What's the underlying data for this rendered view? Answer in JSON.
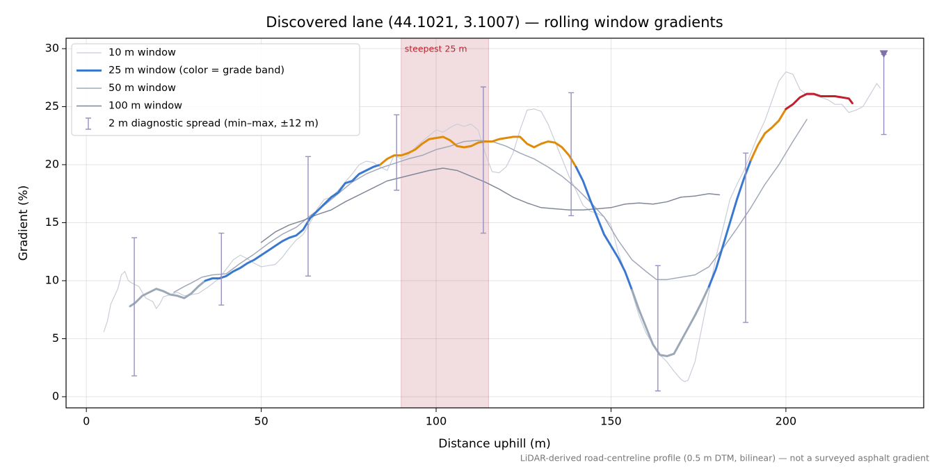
{
  "chart_data": {
    "type": "line",
    "title": "Discovered lane (44.1021, 3.1007) — rolling window gradients",
    "xlabel": "Distance uphill (m)",
    "ylabel": "Gradient (%)",
    "footnote": "LiDAR-derived road-centreline profile (0.5 m DTM, bilinear) — not a surveyed asphalt gradient",
    "xlim": [
      -5.8,
      239.4
    ],
    "ylim": [
      -0.96,
      30.9
    ],
    "xticks": [
      0,
      50,
      100,
      150,
      200
    ],
    "yticks": [
      0,
      5,
      10,
      15,
      20,
      25,
      30
    ],
    "grid": true,
    "legend": "upper left",
    "shade": {
      "x0": 90,
      "x1": 115,
      "label": "steepest 25 m",
      "color": "#d9a0a8",
      "label_color": "#c0202e"
    },
    "series": [
      {
        "name": "10 m window",
        "color": "#c8cdd8",
        "width": 1.2,
        "x": [
          5,
          6,
          7,
          9,
          10,
          11,
          12,
          13,
          15,
          17,
          19,
          20,
          21,
          22,
          24,
          26,
          28,
          30,
          32,
          35,
          38,
          40,
          42,
          44,
          46,
          48,
          50,
          52,
          54,
          56,
          58,
          60,
          62,
          64,
          66,
          68,
          70,
          72,
          74,
          76,
          78,
          80,
          82,
          84,
          86,
          88,
          90,
          92,
          94,
          96,
          98,
          100,
          102,
          104,
          106,
          108,
          110,
          112,
          114,
          116,
          118,
          120,
          122,
          124,
          126,
          128,
          130,
          132,
          134,
          136,
          138,
          140,
          142,
          144,
          146,
          148,
          150,
          152,
          154,
          156,
          158,
          160,
          162,
          164,
          166,
          168,
          170,
          171,
          172,
          174,
          176,
          178,
          180,
          182,
          184,
          186,
          188,
          190,
          192,
          194,
          196,
          198,
          200,
          202,
          204,
          206,
          208,
          210,
          212,
          214,
          216,
          218,
          220,
          222,
          224,
          226,
          227
        ],
        "values": [
          5.6,
          6.5,
          8,
          9.3,
          10.5,
          10.8,
          10,
          9.8,
          9.5,
          8.5,
          8.2,
          7.6,
          8,
          8.6,
          8.8,
          9,
          8.7,
          8.8,
          8.9,
          9.5,
          10.2,
          11,
          11.8,
          12.2,
          11.9,
          11.5,
          11.2,
          11.3,
          11.4,
          12,
          12.8,
          13.5,
          14,
          15,
          16.2,
          17,
          17.2,
          17.8,
          18.5,
          19.2,
          20,
          20.3,
          20.2,
          19.8,
          19.5,
          20.8,
          20.5,
          20.8,
          21.5,
          22,
          22.5,
          23,
          22.8,
          23.2,
          23.5,
          23.3,
          23.5,
          23,
          21,
          19.4,
          19.3,
          19.8,
          21,
          23,
          24.7,
          24.8,
          24.6,
          23.5,
          22,
          20.5,
          19,
          17.8,
          16.5,
          16,
          15.8,
          15.5,
          14.8,
          12.5,
          10.8,
          9,
          7,
          5.5,
          4.5,
          3.6,
          3,
          2.2,
          1.5,
          1.3,
          1.4,
          3,
          6,
          9,
          12,
          14.5,
          17,
          18.3,
          19.5,
          21,
          22.5,
          23.8,
          25.5,
          27.2,
          28,
          27.8,
          26.5,
          26,
          26,
          25.8,
          25.6,
          25.2,
          25.2,
          24.5,
          24.7,
          25,
          26,
          27,
          26.6
        ]
      },
      {
        "name": "25 m window (color = grade band)",
        "color": "#3a78d0",
        "width": 3,
        "bands": [
          {
            "below": 10,
            "color": "#9aa8b8"
          },
          {
            "below": 20,
            "color": "#3a78d0"
          },
          {
            "below": 25,
            "color": "#e08a0a"
          },
          {
            "below": 100,
            "color": "#c0202e"
          }
        ],
        "x": [
          12.5,
          14,
          16,
          18,
          20,
          22,
          24,
          26,
          28,
          30,
          32,
          34,
          36,
          38,
          40,
          42,
          44,
          46,
          48,
          50,
          52,
          54,
          56,
          58,
          60,
          62,
          64,
          66,
          68,
          70,
          72,
          74,
          76,
          78,
          80,
          82,
          84,
          86,
          88,
          90,
          92,
          94,
          96,
          98,
          100,
          102,
          104,
          106,
          108,
          110,
          112,
          114,
          116,
          118,
          120,
          122,
          124,
          126,
          128,
          130,
          132,
          134,
          136,
          138,
          140,
          142,
          144,
          146,
          148,
          150,
          152,
          154,
          156,
          158,
          160,
          162,
          164,
          166,
          168,
          170,
          172,
          174,
          176,
          178,
          180,
          182,
          184,
          186,
          188,
          190,
          192,
          194,
          196,
          198,
          200,
          202,
          204,
          206,
          208,
          210,
          212,
          214,
          216,
          218,
          219
        ],
        "values": [
          7.8,
          8.1,
          8.7,
          9,
          9.3,
          9.1,
          8.8,
          8.7,
          8.5,
          8.9,
          9.5,
          10,
          10.2,
          10.2,
          10.4,
          10.8,
          11.1,
          11.5,
          11.8,
          12.2,
          12.6,
          13,
          13.4,
          13.7,
          13.9,
          14.4,
          15.4,
          16,
          16.6,
          17.2,
          17.6,
          18.4,
          18.6,
          19.2,
          19.5,
          19.8,
          20,
          20.5,
          20.8,
          20.8,
          21,
          21.3,
          21.8,
          22.2,
          22.3,
          22.4,
          22.1,
          21.6,
          21.5,
          21.6,
          21.9,
          22,
          22,
          22.2,
          22.3,
          22.4,
          22.4,
          21.8,
          21.5,
          21.8,
          22,
          21.9,
          21.5,
          20.8,
          19.8,
          18.6,
          17,
          15.5,
          14,
          13,
          12,
          10.8,
          9.2,
          7.5,
          6,
          4.5,
          3.6,
          3.5,
          3.7,
          4.8,
          5.9,
          7,
          8.2,
          9.5,
          11,
          13,
          15,
          17,
          18.8,
          20.4,
          21.7,
          22.7,
          23.2,
          23.8,
          24.8,
          25.2,
          25.8,
          26.1,
          26.1,
          25.9,
          25.9,
          25.9,
          25.8,
          25.7,
          25.3
        ]
      },
      {
        "name": "50 m window",
        "color": "#a0a8b8",
        "width": 1.5,
        "x": [
          25,
          28,
          30,
          33,
          36,
          40,
          44,
          48,
          52,
          56,
          60,
          64,
          68,
          72,
          76,
          80,
          84,
          88,
          92,
          96,
          100,
          104,
          108,
          112,
          116,
          120,
          124,
          128,
          132,
          136,
          140,
          144,
          148,
          152,
          156,
          160,
          163,
          166,
          170,
          174,
          178,
          182,
          186,
          190,
          194,
          198,
          202,
          206
        ],
        "values": [
          9,
          9.5,
          9.8,
          10.3,
          10.5,
          10.6,
          11.5,
          12.3,
          13.2,
          14,
          14.6,
          15.6,
          16.5,
          17.5,
          18.5,
          19.2,
          19.7,
          20.1,
          20.5,
          20.8,
          21.3,
          21.6,
          22,
          22.1,
          22,
          21.6,
          21,
          20.5,
          19.8,
          19,
          18,
          16.8,
          15.5,
          13.5,
          11.8,
          10.8,
          10.1,
          10.1,
          10.3,
          10.5,
          11.2,
          12.8,
          14.5,
          16.3,
          18.3,
          20,
          22,
          23.9
        ]
      },
      {
        "name": "100 m window",
        "color": "#808898",
        "width": 1.5,
        "x": [
          50,
          54,
          58,
          62,
          66,
          70,
          74,
          78,
          82,
          86,
          90,
          94,
          98,
          102,
          106,
          110,
          114,
          118,
          122,
          126,
          130,
          134,
          138,
          142,
          146,
          150,
          154,
          158,
          162,
          166,
          170,
          174,
          178,
          181
        ],
        "values": [
          13.3,
          14.2,
          14.8,
          15.2,
          15.7,
          16.1,
          16.8,
          17.4,
          18,
          18.6,
          18.9,
          19.2,
          19.5,
          19.7,
          19.5,
          19,
          18.5,
          17.9,
          17.2,
          16.7,
          16.3,
          16.2,
          16.1,
          16.1,
          16.2,
          16.3,
          16.6,
          16.7,
          16.6,
          16.8,
          17.2,
          17.3,
          17.5,
          17.4
        ]
      }
    ],
    "spread": {
      "name": "2 m diagnostic spread (min–max, ±12 m)",
      "color": "#9890c0",
      "x": [
        13.7,
        38.6,
        63.4,
        88.7,
        113.5,
        138.6,
        163.4,
        188.5,
        228
      ],
      "min": [
        1.8,
        7.9,
        10.4,
        17.8,
        14.1,
        15.6,
        0.5,
        6.4,
        22.6
      ],
      "max": [
        13.7,
        14.1,
        20.7,
        24.3,
        26.7,
        26.2,
        11.3,
        21.0,
        29.5
      ]
    },
    "markers": {
      "x": [
        228
      ],
      "y": [
        29.5
      ],
      "color": "#8070a8"
    }
  }
}
